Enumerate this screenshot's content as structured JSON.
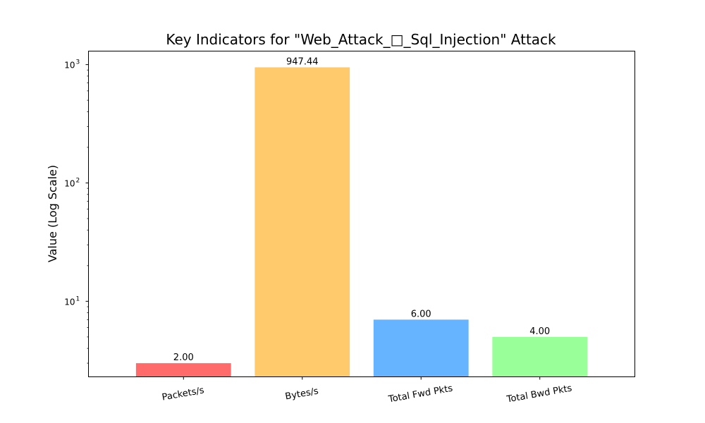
{
  "chart_data": {
    "type": "bar",
    "title": "Key Indicators for \"Web_Attack_□_Sql_Injection\" Attack",
    "xlabel": "",
    "ylabel": "Value (Log Scale)",
    "yscale": "log",
    "ylim": [
      2.3,
      1300
    ],
    "categories": [
      "Packets/s",
      "Bytes/s",
      "Total Fwd Pkts",
      "Total Bwd Pkts"
    ],
    "values": [
      2.0,
      947.44,
      6.0,
      4.0
    ],
    "plotted_heights": [
      3.0,
      948.44,
      7.0,
      5.0
    ],
    "value_labels": [
      "2.00",
      "947.44",
      "6.00",
      "4.00"
    ],
    "colors": [
      "#ff6b6b",
      "#feca6c",
      "#66b4ff",
      "#99ff99"
    ],
    "y_major_ticks": [
      10,
      100,
      1000
    ],
    "y_tick_labels": [
      {
        "base": "10",
        "exp": "1"
      },
      {
        "base": "10",
        "exp": "2"
      },
      {
        "base": "10",
        "exp": "3"
      }
    ],
    "grid": false
  }
}
